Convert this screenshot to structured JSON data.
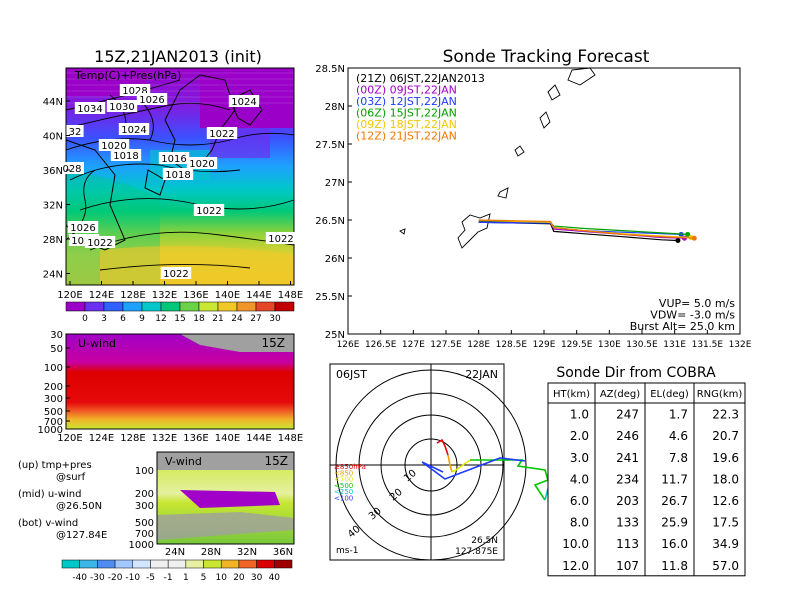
{
  "left_panel": {
    "title": "15Z,21JAN2013 (init)",
    "map_label": "Temp(C)+Pres(hPa)",
    "lat_ticks": [
      "44N",
      "40N",
      "36N",
      "32N",
      "28N",
      "24N"
    ],
    "lon_ticks": [
      "120E",
      "124E",
      "128E",
      "132E",
      "136E",
      "140E",
      "144E",
      "148E"
    ],
    "pressure_labels": [
      "1028",
      "1026",
      "1034",
      "1030",
      "1024",
      "1022",
      "1024",
      "32",
      "1020",
      "1018",
      "1016",
      "028",
      "1020",
      "1018",
      "1022",
      "1026",
      "1024",
      "1022",
      "1022",
      "1022"
    ],
    "temp_colorbar": {
      "ticks": [
        "0",
        "3",
        "6",
        "9",
        "12",
        "15",
        "18",
        "21",
        "24",
        "27",
        "30"
      ],
      "colors": [
        "#9a00c8",
        "#6b2ff0",
        "#3060ff",
        "#1ea0ff",
        "#00c8c8",
        "#00c878",
        "#6ad246",
        "#c8e632",
        "#f0c828",
        "#f09628",
        "#e64628",
        "#c00000"
      ]
    },
    "uwind": {
      "label": "U-wind",
      "time": "15Z",
      "y_ticks": [
        "30",
        "50",
        "100",
        "200",
        "300",
        "500",
        "700",
        "1000"
      ],
      "x_ticks": [
        "120E",
        "124E",
        "128E",
        "132E",
        "136E",
        "140E",
        "144E",
        "148E"
      ]
    },
    "vwind": {
      "label": "V-wind",
      "time": "15Z",
      "y_ticks": [
        "100",
        "200",
        "300",
        "500",
        "700",
        "1000"
      ],
      "x_ticks": [
        "24N",
        "28N",
        "32N",
        "36N"
      ]
    },
    "legend_text": [
      [
        "(up) tmp+pres",
        "@surf"
      ],
      [
        "(mid) u-wind",
        "@26.50N"
      ],
      [
        "(bot) v-wind",
        "@127.84E"
      ]
    ],
    "wind_colorbar": {
      "ticks": [
        "-40",
        "-30",
        "-20",
        "-10",
        "-5",
        "-1",
        "1",
        "5",
        "10",
        "20",
        "30",
        "40"
      ],
      "colors": [
        "#00c8c8",
        "#3cb4e6",
        "#508cf0",
        "#a0c8ff",
        "#d2e6ff",
        "#f0f0f0",
        "#f0f0f0",
        "#e6f0a0",
        "#c8e632",
        "#f0b428",
        "#f06428",
        "#dc0000",
        "#a00000"
      ]
    }
  },
  "track_panel": {
    "title": "Sonde Tracking Forecast",
    "y_ticks": [
      "28.5N",
      "28N",
      "27.5N",
      "27N",
      "26.5N",
      "26N",
      "25.5N",
      "25N"
    ],
    "x_ticks": [
      "126E",
      "126.5E",
      "127E",
      "127.5E",
      "128E",
      "128.5E",
      "129E",
      "129.5E",
      "130E",
      "130.5E",
      "131E",
      "131.5E",
      "132E"
    ],
    "legend": [
      {
        "text": "(21Z)  06JST,22JAN2013",
        "color": "#000000"
      },
      {
        "text": "(00Z)  09JST,22JAN",
        "color": "#a000c8"
      },
      {
        "text": "(03Z)  12JST,22JAN",
        "color": "#1e3cff"
      },
      {
        "text": "(06Z)  15JST,22JAN",
        "color": "#00a000"
      },
      {
        "text": "(09Z)  18JST,22JAN",
        "color": "#f0c800"
      },
      {
        "text": "(12Z)  21JST,22JAN",
        "color": "#f07800"
      }
    ],
    "params": [
      "VUP=  5.0  m/s",
      "VDW= -3.0  m/s",
      "Burst Alt=  25.0  km"
    ]
  },
  "polar_panel": {
    "left_label": "06JST",
    "right_label": "22JAN",
    "ring_labels": [
      "10",
      "20",
      "30",
      "40"
    ],
    "unit": "ms-1",
    "location": [
      "26.5N",
      "127.875E"
    ],
    "level_legend": [
      {
        "text": "≥850hPa",
        "color": "#e60000"
      },
      {
        "text": "<850",
        "color": "#f0a000"
      },
      {
        "text": "<700",
        "color": "#e6e600"
      },
      {
        "text": "<500",
        "color": "#00c800"
      },
      {
        "text": "<250",
        "color": "#00c8c8"
      },
      {
        "text": "<100",
        "color": "#1e3cff"
      }
    ]
  },
  "chart_data": {
    "type": "table",
    "title": "Sonde Dir from COBRA",
    "columns": [
      "HT(km)",
      "AZ(deg)",
      "EL(deg)",
      "RNG(km)"
    ],
    "rows": [
      [
        "1.0",
        "247",
        "1.7",
        "22.3"
      ],
      [
        "2.0",
        "246",
        "4.6",
        "20.7"
      ],
      [
        "3.0",
        "241",
        "7.8",
        "19.6"
      ],
      [
        "4.0",
        "234",
        "11.7",
        "18.0"
      ],
      [
        "6.0",
        "203",
        "26.7",
        "12.6"
      ],
      [
        "8.0",
        "133",
        "25.9",
        "17.5"
      ],
      [
        "10.0",
        "113",
        "16.0",
        "34.9"
      ],
      [
        "12.0",
        "107",
        "11.8",
        "57.0"
      ]
    ],
    "tracks": [
      {
        "name": "(21Z)  06JST,22JAN2013",
        "lon": [
          128.0,
          128.6,
          129.1,
          129.15,
          129.6,
          130.2,
          130.8,
          131.05
        ],
        "lat": [
          26.47,
          26.46,
          26.45,
          26.35,
          26.32,
          26.28,
          26.24,
          26.23
        ]
      },
      {
        "name": "(00Z)  09JST,22JAN",
        "lon": [
          128.0,
          128.6,
          129.1,
          129.15,
          129.6,
          130.2,
          130.8,
          131.15
        ],
        "lat": [
          26.48,
          26.47,
          26.46,
          26.38,
          26.35,
          26.31,
          26.27,
          26.26
        ]
      },
      {
        "name": "(03Z)  12JST,22JAN",
        "lon": [
          128.0,
          128.6,
          129.1,
          129.15,
          129.6,
          130.2,
          130.8,
          131.1
        ],
        "lat": [
          26.47,
          26.46,
          26.46,
          26.4,
          26.36,
          26.34,
          26.32,
          26.31
        ]
      },
      {
        "name": "(06Z)  15JST,22JAN",
        "lon": [
          128.0,
          128.6,
          129.1,
          129.15,
          129.6,
          130.2,
          130.8,
          131.2
        ],
        "lat": [
          26.49,
          26.48,
          26.47,
          26.42,
          26.39,
          26.36,
          26.33,
          26.31
        ]
      },
      {
        "name": "(09Z)  18JST,22JAN",
        "lon": [
          128.0,
          128.6,
          129.1,
          129.15,
          129.6,
          130.2,
          130.8,
          131.25
        ],
        "lat": [
          26.5,
          26.48,
          26.47,
          26.4,
          26.36,
          26.32,
          26.29,
          26.27
        ]
      },
      {
        "name": "(12Z)  21JST,22JAN",
        "lon": [
          128.0,
          128.6,
          129.1,
          129.15,
          129.6,
          130.2,
          130.8,
          131.3
        ],
        "lat": [
          26.5,
          26.49,
          26.48,
          26.4,
          26.36,
          26.31,
          26.28,
          26.26
        ]
      }
    ],
    "xlim": [
      126,
      132
    ],
    "ylim": [
      25,
      28.5
    ]
  }
}
